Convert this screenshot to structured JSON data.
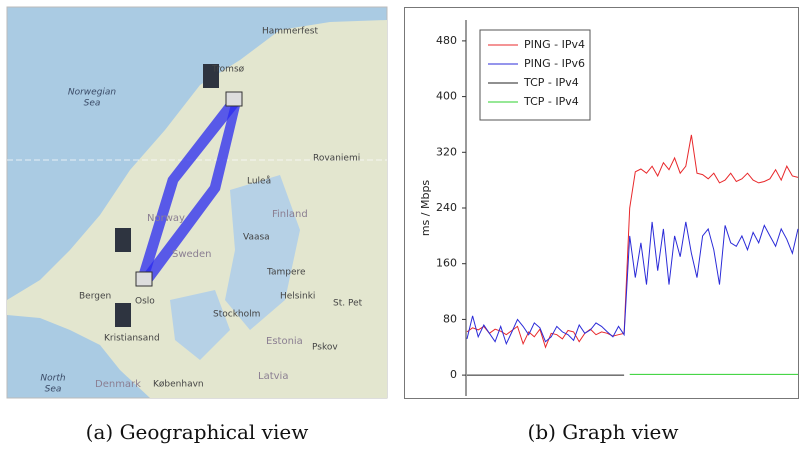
{
  "map": {
    "labels": [
      "Hammerfest",
      "Tromsø",
      "Norwegian",
      "Sea",
      "Rovaniemi",
      "Luleå",
      "Norway",
      "Finland",
      "Vaasa",
      "Sweden",
      "Tampere",
      "Bergen",
      "Oslo",
      "Helsinki",
      "St. Pet",
      "Stockholm",
      "Estonia",
      "Kristiansand",
      "Pskov",
      "North",
      "Sea",
      "Latvia",
      "Denmark",
      "København"
    ]
  },
  "chart_data": {
    "type": "line",
    "y_label": "ms / Mbps",
    "ylim": [
      -30,
      510
    ],
    "yticks": [
      0,
      80,
      160,
      240,
      320,
      400,
      480
    ],
    "series": [
      {
        "name": "PING - IPv4",
        "color": "#e8282b",
        "values": [
          62,
          68,
          65,
          70,
          60,
          66,
          63,
          58,
          64,
          70,
          45,
          62,
          55,
          66,
          40,
          60,
          58,
          52,
          64,
          62,
          48,
          60,
          66,
          58,
          62,
          60,
          56,
          58,
          60,
          240,
          292,
          296,
          290,
          300,
          286,
          305,
          295,
          312,
          290,
          300,
          345,
          290,
          288,
          282,
          290,
          276,
          280,
          290,
          278,
          282,
          290,
          280,
          276,
          278,
          282,
          295,
          280,
          300,
          286,
          284
        ]
      },
      {
        "name": "PING - IPv6",
        "color": "#2b2bd8",
        "values": [
          52,
          85,
          55,
          72,
          60,
          48,
          70,
          45,
          62,
          80,
          70,
          58,
          75,
          68,
          48,
          55,
          70,
          62,
          58,
          50,
          72,
          60,
          65,
          75,
          70,
          62,
          55,
          70,
          58,
          200,
          140,
          190,
          130,
          220,
          150,
          210,
          130,
          200,
          170,
          220,
          175,
          140,
          200,
          210,
          180,
          130,
          215,
          190,
          185,
          200,
          180,
          205,
          190,
          215,
          200,
          185,
          210,
          195,
          175,
          210
        ]
      },
      {
        "name": "TCP - IPv4",
        "color": "#222222",
        "values": [
          0,
          0,
          0,
          0,
          0,
          0,
          0,
          0,
          0,
          0,
          0,
          0,
          0,
          0,
          0,
          0,
          0,
          0,
          0,
          0,
          0,
          0,
          0,
          0,
          0,
          0,
          0,
          0,
          0,
          null,
          null,
          null,
          null,
          null,
          null,
          null,
          null,
          null,
          null,
          null,
          null,
          null,
          null,
          null,
          null,
          null,
          null,
          null,
          null,
          null,
          null,
          null,
          null,
          null,
          null,
          null,
          null,
          null,
          null,
          null
        ]
      },
      {
        "name": "TCP - IPv4",
        "color": "#2ed02e",
        "values": [
          null,
          null,
          null,
          null,
          null,
          null,
          null,
          null,
          null,
          null,
          null,
          null,
          null,
          null,
          null,
          null,
          null,
          null,
          null,
          null,
          null,
          null,
          null,
          null,
          null,
          null,
          null,
          null,
          null,
          1,
          1,
          1,
          1,
          1,
          1,
          1,
          1,
          1,
          1,
          1,
          1,
          1,
          1,
          1,
          1,
          1,
          1,
          1,
          1,
          1,
          1,
          1,
          1,
          1,
          1,
          1,
          1,
          1,
          1,
          1
        ]
      }
    ]
  },
  "captions": {
    "a": "(a) Geographical view",
    "b": "(b) Graph view"
  }
}
